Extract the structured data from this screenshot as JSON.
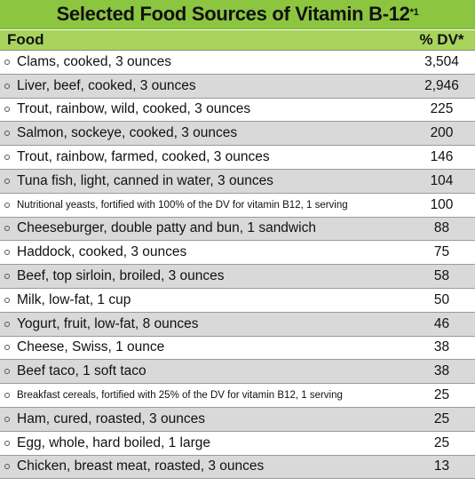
{
  "title": {
    "text": "Selected Food Sources of Vitamin B-12",
    "note": "*1"
  },
  "header": {
    "food": "Food",
    "dv": "% DV*"
  },
  "colors": {
    "title_bg": "#8cc540",
    "header_bg": "#a8d45e",
    "row_shade": "#d9d9da"
  },
  "rows": [
    {
      "food": "Clams, cooked, 3 ounces",
      "dv": "3,504"
    },
    {
      "food": "Liver, beef, cooked, 3 ounces",
      "dv": "2,946"
    },
    {
      "food": "Trout, rainbow, wild, cooked, 3 ounces",
      "dv": "225"
    },
    {
      "food": "Salmon, sockeye, cooked, 3 ounces",
      "dv": "200"
    },
    {
      "food": "Trout, rainbow, farmed, cooked, 3 ounces",
      "dv": "146"
    },
    {
      "food": "Tuna fish, light, canned in water, 3 ounces",
      "dv": "104"
    },
    {
      "food": "Nutritional yeasts, fortified with 100% of the DV for vitamin B12, 1 serving",
      "dv": "100",
      "small": true
    },
    {
      "food": "Cheeseburger, double patty and bun, 1 sandwich",
      "dv": "88"
    },
    {
      "food": "Haddock, cooked, 3 ounces",
      "dv": "75"
    },
    {
      "food": "Beef, top sirloin, broiled, 3 ounces",
      "dv": "58"
    },
    {
      "food": "Milk, low-fat, 1 cup",
      "dv": "50"
    },
    {
      "food": "Yogurt, fruit, low-fat, 8 ounces",
      "dv": "46"
    },
    {
      "food": "Cheese, Swiss, 1 ounce",
      "dv": "38"
    },
    {
      "food": "Beef taco, 1 soft taco",
      "dv": "38"
    },
    {
      "food": "Breakfast cereals, fortified with 25% of the DV for vitamin B12, 1 serving",
      "dv": "25",
      "small": true
    },
    {
      "food": "Ham, cured, roasted, 3 ounces",
      "dv": "25"
    },
    {
      "food": "Egg, whole, hard boiled, 1 large",
      "dv": "25"
    },
    {
      "food": "Chicken, breast meat, roasted, 3 ounces",
      "dv": "13"
    }
  ]
}
